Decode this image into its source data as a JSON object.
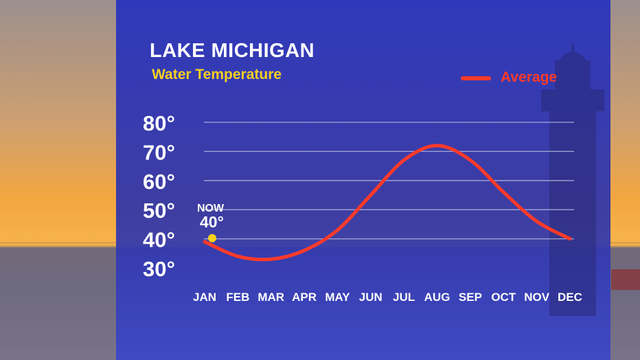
{
  "title": "LAKE MICHIGAN",
  "subtitle": "Water Temperature",
  "legend": {
    "label": "Average",
    "color": "#ff3a2a"
  },
  "now": {
    "label": "NOW",
    "value": "40°",
    "dot_color": "#f5d31a"
  },
  "chart_data": {
    "type": "line",
    "title": "LAKE MICHIGAN",
    "subtitle": "Water Temperature",
    "xlabel": "",
    "ylabel": "",
    "categories": [
      "JAN",
      "FEB",
      "MAR",
      "APR",
      "MAY",
      "JUN",
      "JUL",
      "AUG",
      "SEP",
      "OCT",
      "NOV",
      "DEC"
    ],
    "ylim": [
      30,
      80
    ],
    "yticks": [
      80,
      70,
      60,
      50,
      40,
      30
    ],
    "ytick_labels": [
      "80°",
      "70°",
      "60°",
      "50°",
      "40°",
      "30°"
    ],
    "grid": true,
    "legend_position": "top-right",
    "series": [
      {
        "name": "Average",
        "color": "#ff3a2a",
        "values": [
          39,
          34,
          33,
          36,
          43,
          55,
          67,
          72,
          67,
          56,
          46,
          40
        ]
      }
    ],
    "highlight": {
      "category": "JAN",
      "value": 40,
      "label": "NOW",
      "value_label": "40°"
    }
  }
}
